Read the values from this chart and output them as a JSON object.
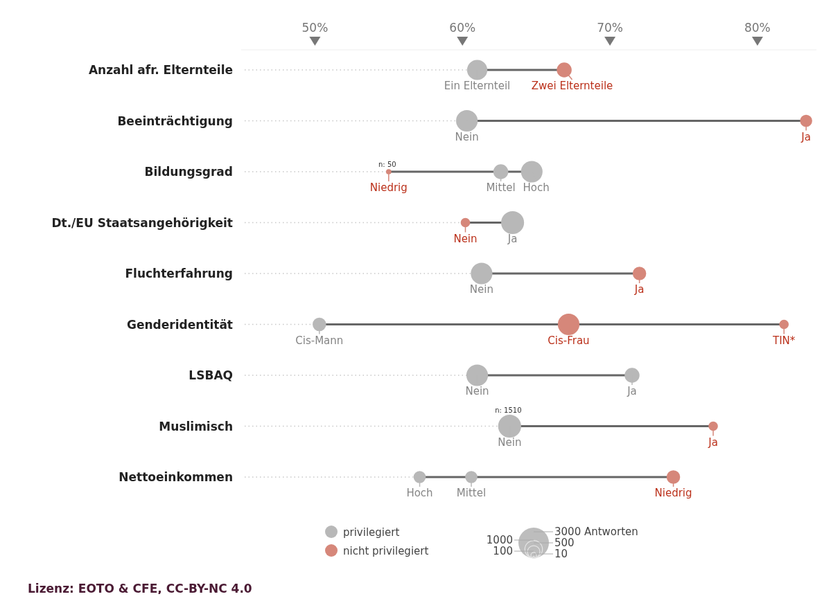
{
  "chart_data": {
    "type": "bubble",
    "orientation": "horizontal",
    "categories": [
      "Anzahl afr. Elternteile",
      "Beeinträchtigung",
      "Bildungsgrad",
      "Dt./EU Staatsangehörigkeit",
      "Fluchterfahrung",
      "Genderidentität",
      "LSBAQ",
      "Muslimisch",
      "Nettoeinkommen"
    ],
    "xlim": [
      45,
      84
    ],
    "xticks": [
      {
        "value": 50,
        "label": "50%"
      },
      {
        "value": 60,
        "label": "60%"
      },
      {
        "value": 70,
        "label": "70%"
      },
      {
        "value": 80,
        "label": "80%"
      }
    ],
    "series": [
      {
        "name": "privilegiert",
        "color": "#b8b8b8",
        "values": [
          61.0,
          60.3,
          62.6,
          63.4,
          61.3,
          50.3,
          61.0,
          63.2,
          57.1
        ],
        "sizes": [
          1150,
          1320,
          590,
          1500,
          1320,
          475,
          1320,
          1510,
          375
        ],
        "value_labels": [
          "Ein Elternteil",
          "Nein",
          "Mittel",
          "Ja",
          "Nein",
          "Cis-Mann",
          "Nein",
          "Nein",
          "Hoch"
        ]
      },
      {
        "color": "#b8b8b8",
        "values": [
          null,
          null,
          64.7,
          null,
          null,
          null,
          71.5,
          null,
          60.6
        ],
        "sizes": [
          null,
          null,
          1320,
          null,
          null,
          null,
          590,
          null,
          375
        ],
        "value_labels": [
          null,
          null,
          "Hoch",
          null,
          null,
          null,
          "Ja",
          null,
          "Mittel"
        ]
      },
      {
        "name": "nicht privilegiert",
        "color": "#d6877a",
        "values": [
          66.9,
          83.3,
          55.0,
          60.2,
          72.0,
          67.2,
          null,
          77.0,
          74.3
        ],
        "sizes": [
          590,
          375,
          50,
          210,
          475,
          1320,
          null,
          210,
          475
        ],
        "value_labels": [
          "Zwei Elternteile",
          "Ja",
          "Niedrig",
          "Nein",
          "Ja",
          "Cis-Frau",
          null,
          "Ja",
          "Niedrig"
        ]
      },
      {
        "color": "#d6877a",
        "values": [
          null,
          null,
          null,
          null,
          null,
          81.8,
          null,
          null,
          null
        ],
        "sizes": [
          null,
          null,
          null,
          null,
          null,
          210,
          null,
          null,
          null
        ],
        "value_labels": [
          null,
          null,
          null,
          null,
          null,
          "TIN*",
          null,
          null,
          null
        ]
      }
    ],
    "size_legend": [
      {
        "value": 3000,
        "label": "3000 Antworten"
      },
      1000,
      500,
      100,
      10
    ],
    "legend": "bottom",
    "annotations": [
      {
        "text": "n: 50",
        "x": 55.0,
        "y": "Bildungsgrad"
      },
      {
        "text": "n: 1510",
        "x": 63.2,
        "y": "Muslimisch"
      },
      "Lizenz: EOTO & CFE, CC-BY-NC 4.0"
    ]
  }
}
